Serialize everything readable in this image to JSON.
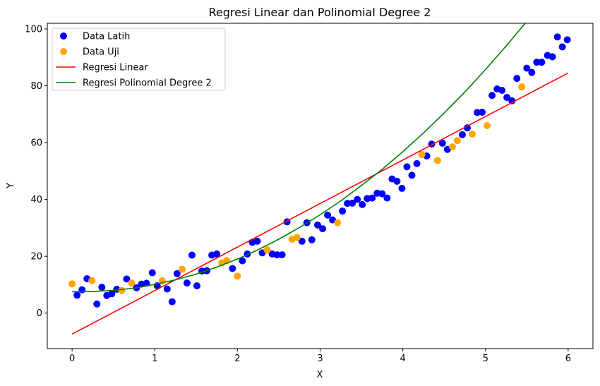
{
  "chart_data": {
    "type": "scatter",
    "title": "Regresi Linear dan Polinomial Degree 2",
    "xlabel": "X",
    "ylabel": "Y",
    "xlim": [
      -0.3,
      6.3
    ],
    "ylim": [
      -12.5,
      102
    ],
    "xticks": [
      0,
      1,
      2,
      3,
      4,
      5,
      6
    ],
    "yticks": [
      0,
      20,
      40,
      60,
      80,
      100
    ],
    "grid": false,
    "legend_position": "top-left",
    "series": [
      {
        "name": "Data Latih",
        "kind": "points",
        "color": "#0000ff",
        "points": [
          [
            0.06,
            6.3
          ],
          [
            0.12,
            8.2
          ],
          [
            0.18,
            12.1
          ],
          [
            0.3,
            3.2
          ],
          [
            0.36,
            9.1
          ],
          [
            0.42,
            6.2
          ],
          [
            0.48,
            6.8
          ],
          [
            0.54,
            8.4
          ],
          [
            0.66,
            12.0
          ],
          [
            0.78,
            8.9
          ],
          [
            0.84,
            10.2
          ],
          [
            0.9,
            10.5
          ],
          [
            0.97,
            14.2
          ],
          [
            1.03,
            9.6
          ],
          [
            1.15,
            8.5
          ],
          [
            1.21,
            4.0
          ],
          [
            1.27,
            13.9
          ],
          [
            1.39,
            10.6
          ],
          [
            1.45,
            20.4
          ],
          [
            1.51,
            9.6
          ],
          [
            1.57,
            14.8
          ],
          [
            1.63,
            14.9
          ],
          [
            1.69,
            20.4
          ],
          [
            1.75,
            20.8
          ],
          [
            1.94,
            15.7
          ],
          [
            2.06,
            18.4
          ],
          [
            2.12,
            20.8
          ],
          [
            2.18,
            24.9
          ],
          [
            2.24,
            25.3
          ],
          [
            2.3,
            21.2
          ],
          [
            2.42,
            20.8
          ],
          [
            2.48,
            20.5
          ],
          [
            2.54,
            20.5
          ],
          [
            2.6,
            32.1
          ],
          [
            2.78,
            25.3
          ],
          [
            2.84,
            31.8
          ],
          [
            2.9,
            25.8
          ],
          [
            2.97,
            31.0
          ],
          [
            3.03,
            29.7
          ],
          [
            3.09,
            34.5
          ],
          [
            3.15,
            32.8
          ],
          [
            3.27,
            35.9
          ],
          [
            3.33,
            38.6
          ],
          [
            3.39,
            38.7
          ],
          [
            3.45,
            40.0
          ],
          [
            3.51,
            38.2
          ],
          [
            3.57,
            40.3
          ],
          [
            3.63,
            40.5
          ],
          [
            3.69,
            42.2
          ],
          [
            3.75,
            42.0
          ],
          [
            3.81,
            40.5
          ],
          [
            3.87,
            47.2
          ],
          [
            3.93,
            46.4
          ],
          [
            3.99,
            43.9
          ],
          [
            4.05,
            51.5
          ],
          [
            4.11,
            48.5
          ],
          [
            4.17,
            52.6
          ],
          [
            4.29,
            55.3
          ],
          [
            4.35,
            59.5
          ],
          [
            4.48,
            59.8
          ],
          [
            4.54,
            57.6
          ],
          [
            4.72,
            62.8
          ],
          [
            4.78,
            65.2
          ],
          [
            4.9,
            70.6
          ],
          [
            4.96,
            70.7
          ],
          [
            5.08,
            76.6
          ],
          [
            5.14,
            78.9
          ],
          [
            5.2,
            78.4
          ],
          [
            5.26,
            75.9
          ],
          [
            5.32,
            74.7
          ],
          [
            5.38,
            82.6
          ],
          [
            5.5,
            86.2
          ],
          [
            5.56,
            84.7
          ],
          [
            5.62,
            88.3
          ],
          [
            5.68,
            88.3
          ],
          [
            5.75,
            90.7
          ],
          [
            5.81,
            90.2
          ],
          [
            5.87,
            97.2
          ],
          [
            5.93,
            93.7
          ],
          [
            5.99,
            96.2
          ]
        ]
      },
      {
        "name": "Data Uji",
        "kind": "points",
        "color": "#ffa500",
        "points": [
          [
            0.0,
            10.3
          ],
          [
            0.24,
            11.4
          ],
          [
            0.6,
            8.0
          ],
          [
            0.72,
            10.6
          ],
          [
            1.09,
            11.4
          ],
          [
            1.33,
            15.4
          ],
          [
            1.81,
            17.6
          ],
          [
            1.87,
            18.5
          ],
          [
            2.0,
            13.0
          ],
          [
            2.36,
            22.2
          ],
          [
            2.66,
            26.0
          ],
          [
            2.72,
            26.6
          ],
          [
            3.21,
            31.8
          ],
          [
            4.23,
            55.8
          ],
          [
            4.42,
            53.7
          ],
          [
            4.6,
            58.5
          ],
          [
            4.66,
            60.7
          ],
          [
            4.84,
            63.0
          ],
          [
            5.02,
            66.0
          ],
          [
            5.44,
            79.6
          ]
        ]
      },
      {
        "name": "Regresi Linear",
        "kind": "line",
        "color": "#ff0000",
        "points": [
          [
            0,
            -7.4
          ],
          [
            6,
            84.5
          ]
        ]
      },
      {
        "name": "Regresi Polinomial Degree 2",
        "kind": "line",
        "color": "#008000",
        "points": [
          [
            0,
            7.5
          ],
          [
            0.25,
            7.6
          ],
          [
            0.5,
            8.0
          ],
          [
            0.75,
            8.8
          ],
          [
            1.0,
            10.1
          ],
          [
            1.25,
            11.7
          ],
          [
            1.5,
            13.7
          ],
          [
            1.75,
            16.2
          ],
          [
            2.0,
            19.0
          ],
          [
            2.25,
            22.3
          ],
          [
            2.5,
            26.0
          ],
          [
            2.75,
            30.1
          ],
          [
            3.0,
            34.6
          ],
          [
            3.25,
            39.5
          ],
          [
            3.5,
            44.9
          ],
          [
            3.75,
            50.6
          ],
          [
            4.0,
            56.8
          ],
          [
            4.25,
            63.4
          ],
          [
            4.5,
            70.4
          ],
          [
            4.75,
            77.8
          ],
          [
            5.0,
            85.7
          ],
          [
            5.25,
            94.0
          ],
          [
            5.5,
            102.7
          ]
        ]
      }
    ]
  }
}
